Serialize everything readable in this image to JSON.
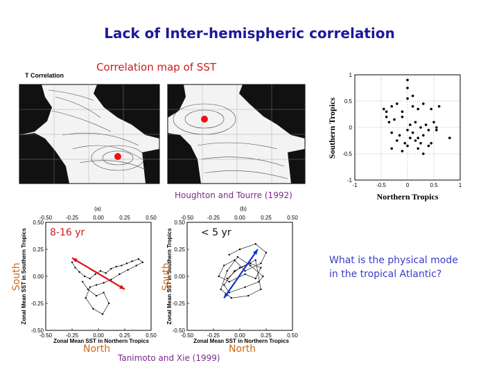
{
  "title": "Lack of Inter-hemispheric correlation",
  "subtitle": "Correlation map of SST",
  "map_header": "T Correlation",
  "credits": {
    "houghton": "Houghton and Tourre (1992)",
    "tanimoto": "Tanimoto and Xie (1999)"
  },
  "question": [
    "What is the physical mode",
    "in the tropical Atlantic?"
  ],
  "panel_a": {
    "letter": "(a)",
    "period": "8-16 yr",
    "south": "South",
    "north": "North"
  },
  "panel_b": {
    "letter": "(b)",
    "period": "< 5 yr",
    "south": "South",
    "north": "North"
  },
  "scatter": {
    "xlabel": "Northern Tropics",
    "ylabel": "Southern Tropics"
  },
  "tanimoto_axes": {
    "xlabel": "Zonal Mean SST in Northern Tropics",
    "ylabel": "Zonal Mean SST in Southern Tropics"
  },
  "colors": {
    "title": "#1a1a99",
    "accent_red": "#dd1111",
    "arrow_blue": "#1133cc",
    "orange": "#cc6a1a"
  },
  "chart_data": [
    {
      "type": "scatter",
      "xlabel": "Northern Tropics",
      "ylabel": "Southern Tropics",
      "xlim": [
        -1,
        1
      ],
      "ylim": [
        -1,
        1
      ],
      "x_ticks": [
        "-1",
        "-0.5",
        "0",
        "0.5",
        "1"
      ],
      "y_ticks": [
        "1",
        "0.5",
        "0",
        "-0.5",
        "-1"
      ],
      "grid": true,
      "x": [
        -0.45,
        -0.4,
        -0.3,
        -0.2,
        -0.1,
        0.0,
        0.0,
        0.1,
        0.2,
        0.3,
        0.45,
        0.6,
        -0.35,
        -0.25,
        -0.1,
        0.05,
        0.15,
        0.25,
        0.35,
        0.5,
        -0.3,
        -0.15,
        0.0,
        0.1,
        0.2,
        0.3,
        0.4,
        0.55,
        -0.2,
        -0.05,
        0.05,
        0.15,
        0.25,
        0.4,
        -0.3,
        -0.1,
        0.0,
        0.2,
        0.3,
        0.45,
        0.1,
        -0.4,
        0.55,
        0.0,
        0.8
      ],
      "y": [
        0.35,
        0.3,
        0.4,
        0.45,
        0.3,
        0.9,
        0.55,
        0.4,
        0.35,
        0.45,
        0.35,
        0.4,
        0.1,
        0.15,
        0.2,
        0.05,
        0.1,
        0.0,
        0.05,
        0.1,
        -0.1,
        -0.15,
        -0.05,
        -0.1,
        -0.2,
        -0.15,
        -0.05,
        -0.05,
        -0.25,
        -0.3,
        -0.2,
        -0.25,
        -0.3,
        -0.35,
        -0.4,
        -0.45,
        -0.35,
        -0.4,
        -0.5,
        -0.3,
        0.6,
        0.2,
        0.0,
        0.75,
        -0.2
      ]
    },
    {
      "type": "line",
      "label": "(a) 8-16 yr",
      "xlabel": "Zonal Mean SST in Northern Tropics",
      "ylabel": "Zonal Mean SST in Southern Tropics",
      "xlim": [
        -0.5,
        0.5
      ],
      "ylim": [
        -0.5,
        0.5
      ],
      "ticks": [
        "-0.50",
        "-0.25",
        "0.00",
        "0.25",
        "0.50"
      ],
      "x": [
        -0.25,
        -0.22,
        -0.18,
        -0.13,
        -0.08,
        -0.03,
        0.02,
        0.07,
        0.12,
        0.17,
        0.22,
        0.27,
        0.32,
        0.38,
        0.42,
        0.36,
        0.28,
        0.2,
        0.12,
        0.05,
        -0.02,
        -0.08,
        -0.12,
        -0.05,
        0.04,
        0.1,
        0.05,
        -0.02,
        -0.1,
        -0.15
      ],
      "y": [
        0.13,
        0.08,
        0.04,
        0.0,
        -0.02,
        0.02,
        0.05,
        0.03,
        0.07,
        0.09,
        0.1,
        0.12,
        0.14,
        0.16,
        0.13,
        0.1,
        0.06,
        0.02,
        -0.03,
        -0.06,
        -0.08,
        -0.1,
        -0.2,
        -0.3,
        -0.35,
        -0.25,
        -0.15,
        -0.18,
        -0.12,
        -0.05
      ],
      "arrow": {
        "from": [
          -0.25,
          0.17
        ],
        "to": [
          0.25,
          -0.12
        ],
        "color": "#dd1111"
      }
    },
    {
      "type": "line",
      "label": "(b) < 5 yr",
      "xlabel": "Zonal Mean SST in Northern Tropics",
      "ylabel": "Zonal Mean SST in Southern Tropics",
      "xlim": [
        -0.5,
        0.5
      ],
      "ylim": [
        -0.5,
        0.5
      ],
      "ticks": [
        "-0.50",
        "-0.25",
        "0.00",
        "0.25",
        "0.50"
      ],
      "x": [
        -0.1,
        0.0,
        0.15,
        0.25,
        0.2,
        0.05,
        -0.05,
        -0.15,
        -0.2,
        -0.1,
        0.05,
        0.15,
        0.2,
        0.1,
        -0.05,
        -0.15,
        -0.1,
        0.05,
        0.18,
        0.22,
        0.1,
        -0.02,
        -0.12,
        -0.18,
        -0.08,
        0.08,
        0.2,
        0.15,
        0.0,
        -0.12
      ],
      "y": [
        0.2,
        0.25,
        0.3,
        0.22,
        0.12,
        0.05,
        0.15,
        0.1,
        0.0,
        -0.05,
        0.02,
        -0.02,
        0.08,
        0.12,
        0.05,
        -0.08,
        -0.15,
        -0.1,
        -0.05,
        0.0,
        0.1,
        0.18,
        0.05,
        -0.12,
        -0.2,
        -0.18,
        -0.12,
        0.15,
        0.08,
        -0.02
      ],
      "arrow": {
        "from": [
          -0.15,
          -0.2
        ],
        "to": [
          0.17,
          0.25
        ],
        "color": "#1133cc"
      }
    }
  ]
}
